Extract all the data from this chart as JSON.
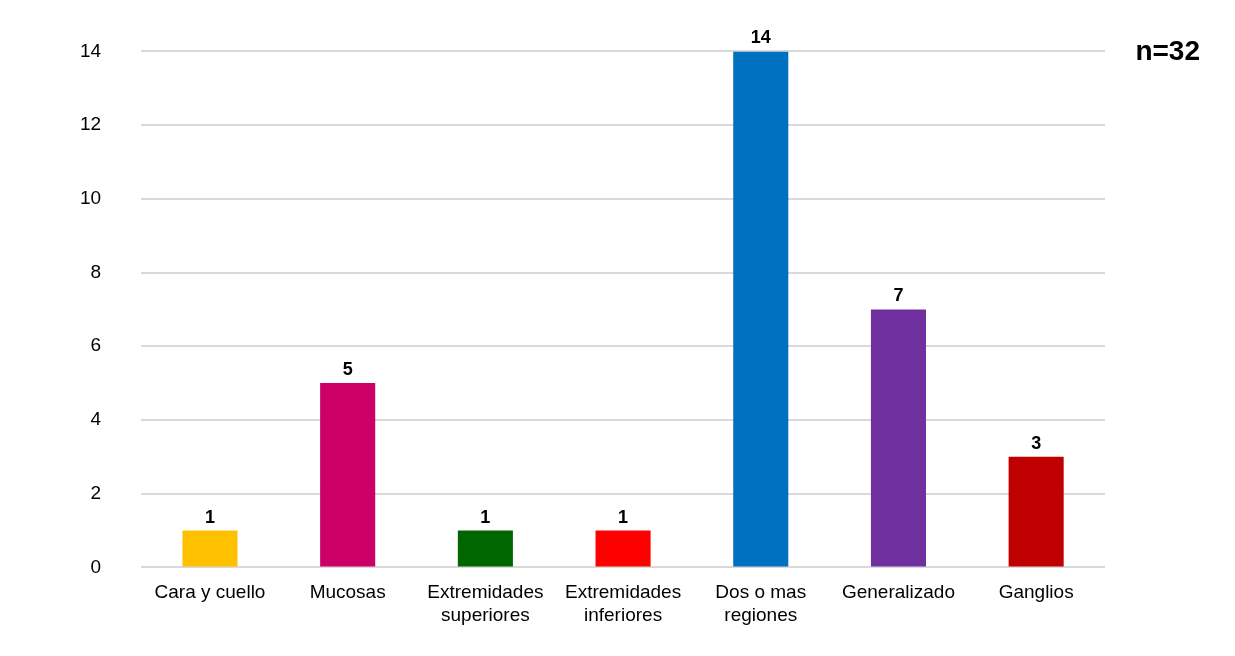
{
  "chart_data": {
    "type": "bar",
    "categories": [
      "Cara y cuello",
      "Mucosas",
      "Extremidades superiores",
      "Extremidades inferiores",
      "Dos o mas regiones",
      "Generalizado",
      "Ganglios"
    ],
    "values": [
      1,
      5,
      1,
      1,
      14,
      7,
      3
    ],
    "colors": [
      "#ffc000",
      "#cc0066",
      "#006600",
      "#ff0000",
      "#0070c0",
      "#7030a0",
      "#c00000"
    ],
    "ylim": [
      0,
      14
    ],
    "yticks": [
      0,
      2,
      4,
      6,
      8,
      10,
      12,
      14
    ],
    "grid": "y",
    "data_labels": true,
    "legend": false,
    "annotations": [
      "n=32"
    ]
  }
}
